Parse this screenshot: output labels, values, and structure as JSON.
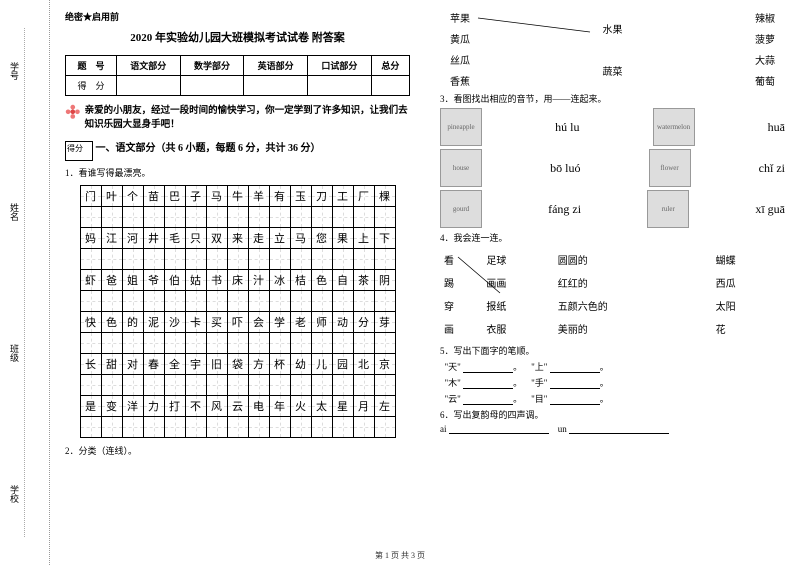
{
  "margin": {
    "labels": [
      "学号",
      "姓名",
      "班级",
      "学校"
    ],
    "fold_marks": [
      "答",
      "准",
      "不",
      "内",
      "线",
      "封",
      "密"
    ]
  },
  "header": {
    "classified": "绝密★启用前",
    "title": "2020 年实验幼儿园大班模拟考试试卷 附答案"
  },
  "score_table": {
    "headers": [
      "题　号",
      "语文部分",
      "数学部分",
      "英语部分",
      "口试部分",
      "总分"
    ],
    "row_label": "得　分"
  },
  "intro": {
    "text1": "亲爱的小朋友，经过一段时间的愉快学习，你一定学到了许多知识，让我们去知识乐园大显身手吧！",
    "score_label": "得分"
  },
  "sec1": {
    "title": "一、语文部分（共 6 小题，每题 6 分，共计 36 分）",
    "q1": "1．看谁写得最漂亮。",
    "grid": [
      [
        "门",
        "叶",
        "个",
        "苗",
        "巴",
        "子",
        "马",
        "牛",
        "羊",
        "有",
        "玉",
        "刀",
        "工",
        "厂",
        "棵"
      ],
      [
        "妈",
        "江",
        "河",
        "井",
        "毛",
        "只",
        "双",
        "来",
        "走",
        "立",
        "马",
        "您",
        "果",
        "上",
        "下"
      ],
      [
        "虾",
        "爸",
        "姐",
        "爷",
        "伯",
        "姑",
        "书",
        "床",
        "汁",
        "冰",
        "桔",
        "色",
        "自",
        "茶",
        "阴"
      ],
      [
        "快",
        "色",
        "的",
        "泥",
        "沙",
        "卡",
        "买",
        "吓",
        "会",
        "学",
        "老",
        "师",
        "动",
        "分",
        "芽"
      ],
      [
        "长",
        "甜",
        "对",
        "春",
        "全",
        "宇",
        "旧",
        "袋",
        "方",
        "杯",
        "幼",
        "儿",
        "园",
        "北",
        "京"
      ],
      [
        "是",
        "变",
        "洋",
        "力",
        "打",
        "不",
        "风",
        "云",
        "电",
        "年",
        "火",
        "太",
        "星",
        "月",
        "左"
      ]
    ],
    "q2": "2．分类（连线）。"
  },
  "right": {
    "match1": {
      "left": [
        "苹果",
        "黄瓜",
        "丝瓜",
        "香蕉"
      ],
      "mid": [
        "水果",
        "蔬菜"
      ],
      "right": [
        "辣椒",
        "菠萝",
        "大蒜",
        "葡萄"
      ]
    },
    "q3": "3．看图找出相应的音节，用——连起来。",
    "pinyin_items": [
      {
        "img1": "pineapple",
        "p1": "hú lu",
        "img2": "watermelon",
        "p2": "huā"
      },
      {
        "img1": "house",
        "p1": "bō luó",
        "img2": "flower",
        "p2": "chǐ zi"
      },
      {
        "img1": "gourd",
        "p1": "fáng zi",
        "img2": "ruler",
        "p2": "xī guā"
      }
    ],
    "q4": "4．我会连一连。",
    "match2": {
      "c1": [
        "看",
        "踢",
        "穿",
        "画"
      ],
      "c2": [
        "足球",
        "画画",
        "报纸",
        "衣服"
      ],
      "c3": [
        "圆圆的",
        "红红的",
        "五颜六色的",
        "美丽的"
      ],
      "c4": [
        "蝴蝶",
        "西瓜",
        "太阳",
        "花"
      ]
    },
    "q5": "5．写出下面字的笔顺。",
    "stroke_items": [
      {
        "a": "\"天\"",
        "b": "\"上\""
      },
      {
        "a": "\"木\"",
        "b": "\"手\""
      },
      {
        "a": "\"云\"",
        "b": "\"目\""
      }
    ],
    "q6": "6．写出复韵母的四声调。",
    "q6_items": [
      "ai",
      "un"
    ]
  },
  "footer": "第 1 页 共 3 页"
}
